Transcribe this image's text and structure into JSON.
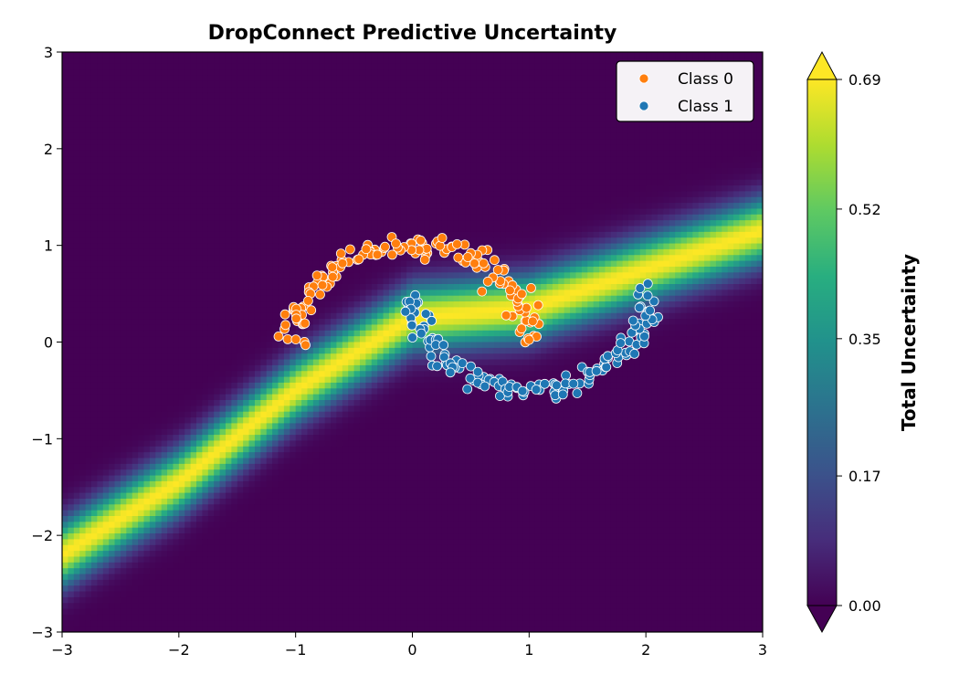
{
  "chart_data": {
    "type": "heatmap",
    "title": "DropConnect Predictive Uncertainty",
    "xlabel": "",
    "ylabel": "",
    "xlim": [
      -3,
      3
    ],
    "ylim": [
      -3,
      3
    ],
    "x_ticks": [
      -3,
      -2,
      -1,
      0,
      1,
      2,
      3
    ],
    "y_ticks": [
      -3,
      -2,
      -1,
      0,
      1,
      2,
      3
    ],
    "x_tick_labels": [
      "−3",
      "−2",
      "−1",
      "0",
      "1",
      "2",
      "3"
    ],
    "y_tick_labels": [
      "−3",
      "−2",
      "−1",
      "0",
      "1",
      "2",
      "3"
    ],
    "colormap": "viridis",
    "colorbar": {
      "label": "Total Uncertainty",
      "range": [
        0.0,
        0.69
      ],
      "ticks": [
        0.0,
        0.17,
        0.35,
        0.52,
        0.69
      ],
      "tick_labels": [
        "0.00",
        "0.17",
        "0.35",
        "0.52",
        "0.69"
      ],
      "extend": "both"
    },
    "legend": {
      "position": "top-right",
      "entries": [
        {
          "label": "Class 0",
          "color": "#ff7f0e"
        },
        {
          "label": "Class 1",
          "color": "#1f77b4"
        }
      ]
    },
    "series": [
      {
        "name": "Class 0",
        "color": "#ff7f0e",
        "shape": "upper moon",
        "center": [
          0,
          0
        ],
        "radius": 1.0,
        "angle_range_deg": [
          0,
          180
        ],
        "count": 150
      },
      {
        "name": "Class 1",
        "color": "#1f77b4",
        "shape": "lower moon",
        "center": [
          1,
          0.5
        ],
        "radius": 1.0,
        "angle_range_deg": [
          180,
          360
        ],
        "count": 150
      }
    ],
    "uncertainty_band": {
      "description": "high-uncertainty decision boundary",
      "points": [
        [
          -3,
          -2.2
        ],
        [
          -2,
          -1.45
        ],
        [
          -1,
          -0.5
        ],
        [
          0,
          0.25
        ],
        [
          0.5,
          0.3
        ],
        [
          1,
          0.35
        ],
        [
          2,
          0.75
        ],
        [
          3,
          1.15
        ]
      ]
    }
  }
}
